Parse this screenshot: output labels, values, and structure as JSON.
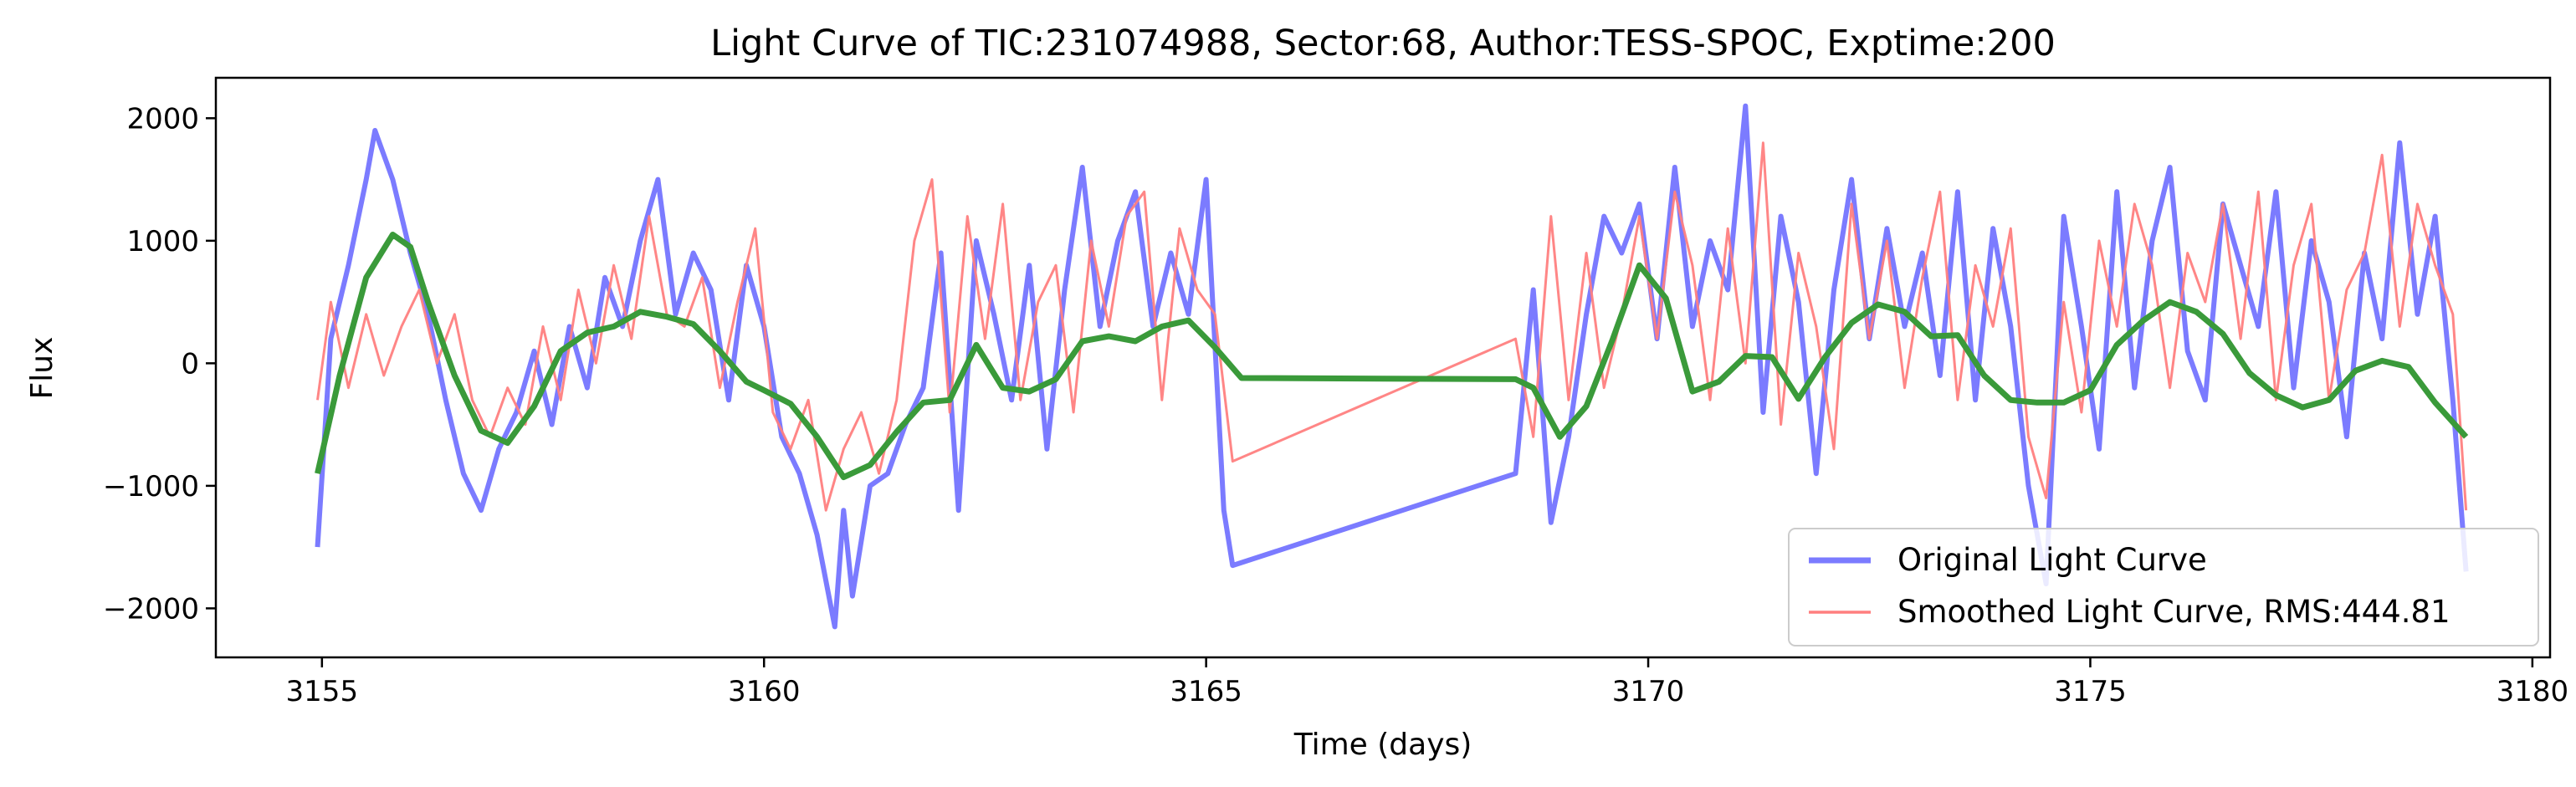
{
  "chart_data": {
    "type": "line",
    "title": "Light Curve of TIC:231074988, Sector:68, Author:TESS-SPOC, Exptime:200",
    "xlabel": "Time (days)",
    "ylabel": "Flux",
    "xlim": [
      3153.8,
      3180.2
    ],
    "ylim": [
      -2400,
      2330
    ],
    "x_ticks": [
      3155,
      3160,
      3165,
      3170,
      3175,
      3180
    ],
    "x_tick_labels": [
      "3155",
      "3160",
      "3165",
      "3170",
      "3175",
      "3180"
    ],
    "y_ticks": [
      -2000,
      -1000,
      0,
      1000,
      2000
    ],
    "y_tick_labels": [
      "−2000",
      "−1000",
      "0",
      "1000",
      "2000"
    ],
    "grid": false,
    "legend_position": "lower-right",
    "colors": {
      "original": "#7b7bff",
      "smoothed": "#ff7f7f",
      "trend": "#3a9a3a"
    },
    "series": [
      {
        "name": "Original Light Curve",
        "x": [
          3154.95,
          3155.1,
          3155.3,
          3155.5,
          3155.6,
          3155.8,
          3156.0,
          3156.2,
          3156.4,
          3156.6,
          3156.8,
          3157.0,
          3157.2,
          3157.4,
          3157.6,
          3157.8,
          3158.0,
          3158.2,
          3158.4,
          3158.6,
          3158.8,
          3159.0,
          3159.2,
          3159.4,
          3159.6,
          3159.8,
          3160.0,
          3160.2,
          3160.4,
          3160.6,
          3160.8,
          3160.9,
          3161.0,
          3161.2,
          3161.4,
          3161.6,
          3161.8,
          3162.0,
          3162.2,
          3162.4,
          3162.6,
          3162.8,
          3163.0,
          3163.2,
          3163.4,
          3163.6,
          3163.8,
          3164.0,
          3164.2,
          3164.4,
          3164.6,
          3164.8,
          3165.0,
          3165.2,
          3165.3,
          3168.5,
          3168.7,
          3168.9,
          3169.1,
          3169.3,
          3169.5,
          3169.7,
          3169.9,
          3170.1,
          3170.3,
          3170.5,
          3170.7,
          3170.9,
          3171.1,
          3171.3,
          3171.5,
          3171.7,
          3171.9,
          3172.1,
          3172.3,
          3172.5,
          3172.7,
          3172.9,
          3173.1,
          3173.3,
          3173.5,
          3173.7,
          3173.9,
          3174.1,
          3174.3,
          3174.5,
          3174.7,
          3174.9,
          3175.1,
          3175.3,
          3175.5,
          3175.7,
          3175.9,
          3176.1,
          3176.3,
          3176.5,
          3176.7,
          3176.9,
          3177.1,
          3177.3,
          3177.5,
          3177.7,
          3177.9,
          3178.1,
          3178.3,
          3178.5,
          3178.7,
          3178.9,
          3179.1,
          3179.25
        ],
        "y": [
          -1500,
          200,
          800,
          1500,
          1900,
          1500,
          900,
          400,
          -300,
          -900,
          -1200,
          -700,
          -400,
          100,
          -500,
          300,
          -200,
          700,
          300,
          1000,
          1500,
          400,
          900,
          600,
          -300,
          800,
          300,
          -600,
          -900,
          -1400,
          -2150,
          -1200,
          -1900,
          -1000,
          -900,
          -500,
          -200,
          900,
          -1200,
          1000,
          400,
          -300,
          800,
          -700,
          600,
          1600,
          300,
          1000,
          1400,
          300,
          900,
          400,
          1500,
          -1200,
          -1650,
          -900,
          600,
          -1300,
          -600,
          400,
          1200,
          900,
          1300,
          200,
          1600,
          300,
          1000,
          600,
          2100,
          -400,
          1200,
          500,
          -900,
          600,
          1500,
          200,
          1100,
          300,
          900,
          -100,
          1400,
          -300,
          1100,
          300,
          -1000,
          -1800,
          1200,
          300,
          -700,
          1400,
          -200,
          1000,
          1600,
          100,
          -300,
          1300,
          800,
          300,
          1400,
          -200,
          1000,
          500,
          -600,
          900,
          200,
          1800,
          400,
          1200,
          -300,
          -1700
        ]
      },
      {
        "name": "Smoothed Light Curve, RMS:444.81",
        "x": [
          3154.95,
          3155.1,
          3155.3,
          3155.5,
          3155.7,
          3155.9,
          3156.1,
          3156.3,
          3156.5,
          3156.7,
          3156.9,
          3157.1,
          3157.3,
          3157.5,
          3157.7,
          3157.9,
          3158.1,
          3158.3,
          3158.5,
          3158.7,
          3158.9,
          3159.1,
          3159.3,
          3159.5,
          3159.7,
          3159.9,
          3160.1,
          3160.3,
          3160.5,
          3160.7,
          3160.9,
          3161.1,
          3161.3,
          3161.5,
          3161.7,
          3161.9,
          3162.1,
          3162.3,
          3162.5,
          3162.7,
          3162.9,
          3163.1,
          3163.3,
          3163.5,
          3163.7,
          3163.9,
          3164.1,
          3164.3,
          3164.5,
          3164.7,
          3164.9,
          3165.1,
          3165.3,
          3168.5,
          3168.7,
          3168.9,
          3169.1,
          3169.3,
          3169.5,
          3169.7,
          3169.9,
          3170.1,
          3170.3,
          3170.5,
          3170.7,
          3170.9,
          3171.1,
          3171.3,
          3171.5,
          3171.7,
          3171.9,
          3172.1,
          3172.3,
          3172.5,
          3172.7,
          3172.9,
          3173.1,
          3173.3,
          3173.5,
          3173.7,
          3173.9,
          3174.1,
          3174.3,
          3174.5,
          3174.7,
          3174.9,
          3175.1,
          3175.3,
          3175.5,
          3175.7,
          3175.9,
          3176.1,
          3176.3,
          3176.5,
          3176.7,
          3176.9,
          3177.1,
          3177.3,
          3177.5,
          3177.7,
          3177.9,
          3178.1,
          3178.3,
          3178.5,
          3178.7,
          3178.9,
          3179.1,
          3179.25
        ],
        "y": [
          -300,
          500,
          -200,
          400,
          -100,
          300,
          600,
          0,
          400,
          -300,
          -600,
          -200,
          -500,
          300,
          -300,
          600,
          0,
          800,
          200,
          1200,
          400,
          300,
          700,
          -200,
          500,
          1100,
          -400,
          -700,
          -300,
          -1200,
          -700,
          -400,
          -900,
          -300,
          1000,
          1500,
          -400,
          1200,
          200,
          1300,
          -300,
          500,
          800,
          -400,
          1000,
          300,
          1200,
          1400,
          -300,
          1100,
          600,
          400,
          -800,
          200,
          -600,
          1200,
          -300,
          900,
          -200,
          400,
          1200,
          200,
          1400,
          800,
          -300,
          1100,
          0,
          1800,
          -500,
          900,
          300,
          -700,
          1300,
          200,
          1000,
          -200,
          700,
          1400,
          -300,
          800,
          300,
          1100,
          -600,
          -1100,
          500,
          -400,
          1000,
          300,
          1300,
          800,
          -200,
          900,
          500,
          1300,
          200,
          1400,
          -300,
          800,
          1300,
          -300,
          600,
          900,
          1700,
          300,
          1300,
          800,
          400,
          -1200
        ]
      },
      {
        "name": "",
        "x": [
          3154.95,
          3155.2,
          3155.5,
          3155.8,
          3156.0,
          3156.2,
          3156.5,
          3156.8,
          3157.1,
          3157.4,
          3157.7,
          3158.0,
          3158.3,
          3158.6,
          3158.9,
          3159.2,
          3159.5,
          3159.8,
          3160.0,
          3160.3,
          3160.6,
          3160.9,
          3161.2,
          3161.5,
          3161.8,
          3162.1,
          3162.4,
          3162.7,
          3163.0,
          3163.3,
          3163.6,
          3163.9,
          3164.2,
          3164.5,
          3164.8,
          3165.1,
          3165.4,
          3168.5,
          3168.7,
          3169.0,
          3169.3,
          3169.6,
          3169.9,
          3170.2,
          3170.5,
          3170.8,
          3171.1,
          3171.4,
          3171.7,
          3172.0,
          3172.3,
          3172.6,
          3172.9,
          3173.2,
          3173.5,
          3173.8,
          3174.1,
          3174.4,
          3174.7,
          3175.0,
          3175.3,
          3175.6,
          3175.9,
          3176.2,
          3176.5,
          3176.8,
          3177.1,
          3177.4,
          3177.7,
          3178.0,
          3178.3,
          3178.6,
          3178.9,
          3179.25
        ],
        "y": [
          -900,
          -100,
          700,
          1050,
          950,
          500,
          -100,
          -550,
          -650,
          -350,
          100,
          250,
          300,
          420,
          380,
          320,
          100,
          -150,
          -220,
          -330,
          -600,
          -930,
          -830,
          -560,
          -320,
          -300,
          150,
          -200,
          -230,
          -130,
          180,
          220,
          180,
          300,
          350,
          130,
          -120,
          -130,
          -200,
          -600,
          -350,
          200,
          800,
          530,
          -230,
          -150,
          60,
          50,
          -290,
          50,
          330,
          480,
          420,
          220,
          230,
          -100,
          -300,
          -320,
          -320,
          -220,
          150,
          350,
          500,
          420,
          240,
          -80,
          -260,
          -360,
          -300,
          -60,
          20,
          -30,
          -320,
          -600
        ]
      }
    ]
  }
}
